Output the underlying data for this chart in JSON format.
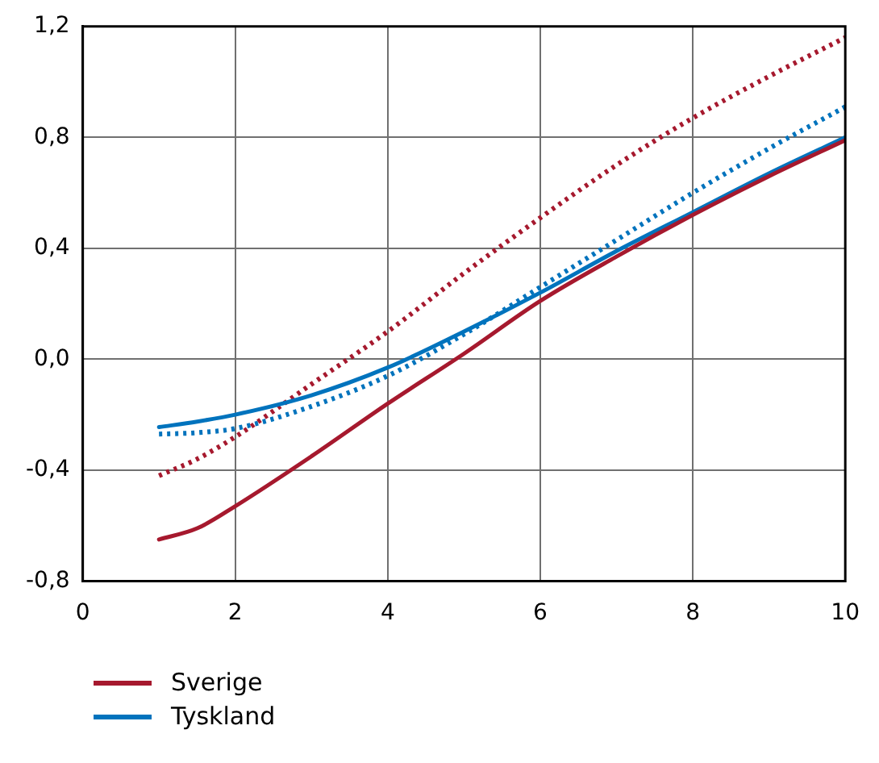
{
  "chart_data": {
    "type": "line",
    "x": [
      1,
      1.5,
      2,
      3,
      4,
      5,
      6,
      7,
      8,
      9,
      10
    ],
    "xlim": [
      0,
      10
    ],
    "xticks": [
      0,
      2,
      4,
      6,
      8,
      10
    ],
    "ylim": [
      -0.8,
      1.2
    ],
    "yticks": [
      {
        "value": -0.8,
        "label": "-0,8"
      },
      {
        "value": -0.4,
        "label": "-0,4"
      },
      {
        "value": 0,
        "label": "0,0"
      },
      {
        "value": 0.4,
        "label": "0,4"
      },
      {
        "value": 0.8,
        "label": "0,8"
      },
      {
        "value": 1.2,
        "label": "1,2"
      }
    ],
    "grid": true,
    "legend": "bottom left",
    "marker": "none",
    "series": [
      {
        "name": "Sverige",
        "color": "#a6192e",
        "line_style": "solid",
        "values": [
          -0.65,
          -0.61,
          -0.53,
          -0.35,
          -0.16,
          0.02,
          0.21,
          0.37,
          0.52,
          0.66,
          0.79
        ]
      },
      {
        "name": "Tyskland",
        "color": "#0073bd",
        "line_style": "solid",
        "values": [
          -0.245,
          -0.225,
          -0.2,
          -0.13,
          -0.03,
          0.1,
          0.24,
          0.39,
          0.53,
          0.67,
          0.8
        ]
      },
      {
        "color": "#a6192e",
        "line_style": "dotted",
        "values": [
          -0.42,
          -0.36,
          -0.28,
          -0.09,
          0.1,
          0.31,
          0.51,
          0.7,
          0.87,
          1.02,
          1.16
        ]
      },
      {
        "color": "#0073bd",
        "line_style": "dotted",
        "values": [
          -0.27,
          -0.265,
          -0.25,
          -0.17,
          -0.06,
          0.09,
          0.26,
          0.43,
          0.6,
          0.76,
          0.91
        ]
      }
    ]
  }
}
